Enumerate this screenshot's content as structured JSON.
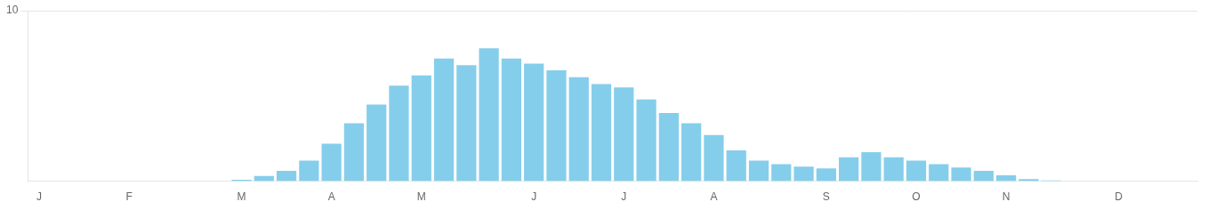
{
  "chart_data": {
    "type": "bar",
    "categories": [
      "J",
      null,
      null,
      null,
      "F",
      null,
      null,
      null,
      null,
      "M",
      null,
      null,
      null,
      "A",
      null,
      null,
      null,
      "M",
      null,
      null,
      null,
      null,
      "J",
      null,
      null,
      null,
      "J",
      null,
      null,
      null,
      "A",
      null,
      null,
      null,
      null,
      "S",
      null,
      null,
      null,
      "O",
      null,
      null,
      null,
      "N",
      null,
      null,
      null,
      null,
      "D",
      null,
      null,
      null
    ],
    "values": [
      0,
      0,
      0,
      0,
      0,
      0,
      0,
      0,
      0,
      0.08,
      0.3,
      0.6,
      1.2,
      2.2,
      3.4,
      4.5,
      5.6,
      6.2,
      7.2,
      6.8,
      7.8,
      7.2,
      6.9,
      6.5,
      6.1,
      5.7,
      5.5,
      4.8,
      4.0,
      3.4,
      2.7,
      1.8,
      1.2,
      1.0,
      0.85,
      0.75,
      1.4,
      1.7,
      1.4,
      1.2,
      1.0,
      0.8,
      0.6,
      0.35,
      0.12,
      0.05,
      0.0,
      0,
      0,
      0,
      0,
      0
    ],
    "color": "#85CEEB",
    "ylim": [
      0,
      10
    ],
    "yticks": [
      10
    ],
    "grid": true
  }
}
